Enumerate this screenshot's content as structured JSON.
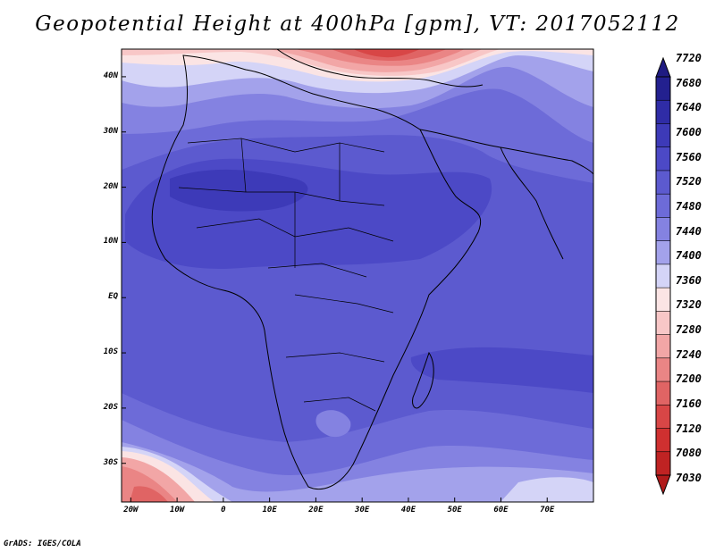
{
  "title": "Geopotential Height at 400hPa [gpm], VT: 2017052112",
  "credit": "GrADS: IGES/COLA",
  "map": {
    "lon_range": [
      -22,
      80
    ],
    "lat_range": [
      -37,
      45
    ],
    "lat_ticks": [
      {
        "label": "40N",
        "value": 40
      },
      {
        "label": "30N",
        "value": 30
      },
      {
        "label": "20N",
        "value": 20
      },
      {
        "label": "10N",
        "value": 10
      },
      {
        "label": "EQ",
        "value": 0
      },
      {
        "label": "10S",
        "value": -10
      },
      {
        "label": "20S",
        "value": -20
      },
      {
        "label": "30S",
        "value": -30
      }
    ],
    "lon_ticks": [
      {
        "label": "20W",
        "value": -20
      },
      {
        "label": "10W",
        "value": -10
      },
      {
        "label": "0",
        "value": 0
      },
      {
        "label": "10E",
        "value": 10
      },
      {
        "label": "20E",
        "value": 20
      },
      {
        "label": "30E",
        "value": 30
      },
      {
        "label": "40E",
        "value": 40
      },
      {
        "label": "50E",
        "value": 50
      },
      {
        "label": "60E",
        "value": 60
      },
      {
        "label": "70E",
        "value": 70
      }
    ]
  },
  "colorbar": {
    "labels": [
      "7720",
      "7680",
      "7640",
      "7600",
      "7560",
      "7520",
      "7480",
      "7440",
      "7400",
      "7360",
      "7320",
      "7280",
      "7240",
      "7200",
      "7160",
      "7120",
      "7080",
      "7030"
    ],
    "colors": [
      "#23208f",
      "#2f2ca6",
      "#3d3ab8",
      "#4c49c6",
      "#5c5acf",
      "#6d6bd8",
      "#8482e1",
      "#a3a2eb",
      "#d4d4f7",
      "#fbe4e4",
      "#f8c7c7",
      "#f2a6a6",
      "#ea8585",
      "#e06464",
      "#d84646",
      "#cf3030",
      "#bf2323"
    ],
    "arrow_top_color": "#1f1b82",
    "arrow_bottom_color": "#b01b1b"
  }
}
